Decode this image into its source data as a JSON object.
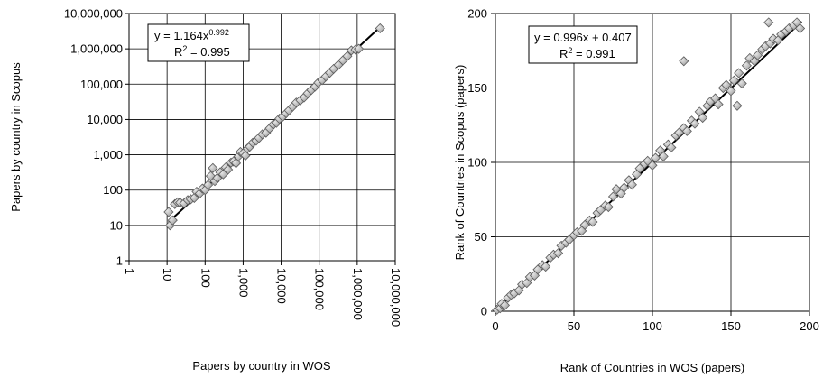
{
  "chart_data": [
    {
      "type": "scatter",
      "xscale": "log",
      "yscale": "log",
      "xlim": [
        1,
        10000000
      ],
      "ylim": [
        1,
        10000000
      ],
      "xlabel": "Papers by country in WOS",
      "ylabel": "Papers by country in Scopus",
      "xticks": [
        "1",
        "10",
        "100",
        "1,000",
        "10,000",
        "100,000",
        "1,000,000",
        "10,000,000"
      ],
      "yticks": [
        "1",
        "10",
        "100",
        "1,000",
        "10,000",
        "100,000",
        "1,000,000",
        "10,000,000"
      ],
      "grid": true,
      "annotation": {
        "line1": "y = 1.164x",
        "exp": "0.992",
        "r2_prefix": "R",
        "r2_sup": "2",
        "r2_value": " = 0.995"
      },
      "trendline": {
        "a": 1.164,
        "b": 0.992,
        "x_range": [
          11,
          4000000
        ]
      },
      "points": [
        [
          11,
          24
        ],
        [
          12,
          10
        ],
        [
          14,
          14
        ],
        [
          16,
          40
        ],
        [
          19,
          45
        ],
        [
          22,
          44
        ],
        [
          28,
          42
        ],
        [
          35,
          52
        ],
        [
          42,
          55
        ],
        [
          52,
          60
        ],
        [
          60,
          90
        ],
        [
          72,
          80
        ],
        [
          85,
          110
        ],
        [
          100,
          100
        ],
        [
          120,
          140
        ],
        [
          140,
          250
        ],
        [
          160,
          420
        ],
        [
          180,
          180
        ],
        [
          210,
          220
        ],
        [
          250,
          320
        ],
        [
          300,
          280
        ],
        [
          350,
          440
        ],
        [
          400,
          380
        ],
        [
          480,
          600
        ],
        [
          560,
          650
        ],
        [
          650,
          580
        ],
        [
          750,
          900
        ],
        [
          850,
          1200
        ],
        [
          1000,
          1100
        ],
        [
          1150,
          950
        ],
        [
          1300,
          1500
        ],
        [
          1500,
          1700
        ],
        [
          1800,
          2200
        ],
        [
          2200,
          2500
        ],
        [
          2600,
          3000
        ],
        [
          3200,
          3800
        ],
        [
          4000,
          4200
        ],
        [
          5000,
          5600
        ],
        [
          6200,
          7200
        ],
        [
          7500,
          8000
        ],
        [
          9000,
          10500
        ],
        [
          11000,
          12000
        ],
        [
          13500,
          15000
        ],
        [
          16000,
          18000
        ],
        [
          20000,
          23000
        ],
        [
          25000,
          30000
        ],
        [
          32000,
          35000
        ],
        [
          40000,
          42000
        ],
        [
          50000,
          55000
        ],
        [
          62000,
          68000
        ],
        [
          78000,
          85000
        ],
        [
          95000,
          110000
        ],
        [
          120000,
          130000
        ],
        [
          150000,
          165000
        ],
        [
          190000,
          210000
        ],
        [
          240000,
          270000
        ],
        [
          320000,
          350000
        ],
        [
          420000,
          470000
        ],
        [
          550000,
          620000
        ],
        [
          700000,
          900000
        ],
        [
          900000,
          950000
        ],
        [
          1100000,
          1000000
        ],
        [
          4000000,
          3800000
        ]
      ]
    },
    {
      "type": "scatter",
      "xlim": [
        0,
        200
      ],
      "ylim": [
        0,
        200
      ],
      "xlabel": "Rank of Countries in WOS (papers)",
      "ylabel": "Rank of Countries in Scopus (papers)",
      "xticks": [
        "0",
        "50",
        "100",
        "150",
        "200"
      ],
      "yticks": [
        "0",
        "50",
        "100",
        "150",
        "200"
      ],
      "grid": true,
      "annotation": {
        "line1": "y = 0.996x + 0.407",
        "r2_prefix": "R",
        "r2_sup": "2",
        "r2_value": " = 0.991"
      },
      "trendline": {
        "a": 0.996,
        "b": 0.407,
        "x_range": [
          0,
          195
        ]
      },
      "points": [
        [
          1,
          1
        ],
        [
          3,
          2
        ],
        [
          4,
          5
        ],
        [
          6,
          4
        ],
        [
          8,
          9
        ],
        [
          10,
          11
        ],
        [
          12,
          12
        ],
        [
          15,
          14
        ],
        [
          17,
          18
        ],
        [
          20,
          19
        ],
        [
          22,
          23
        ],
        [
          25,
          24
        ],
        [
          27,
          28
        ],
        [
          30,
          31
        ],
        [
          32,
          30
        ],
        [
          35,
          36
        ],
        [
          37,
          38
        ],
        [
          40,
          39
        ],
        [
          42,
          44
        ],
        [
          45,
          46
        ],
        [
          47,
          48
        ],
        [
          50,
          51
        ],
        [
          52,
          53
        ],
        [
          55,
          54
        ],
        [
          57,
          58
        ],
        [
          60,
          61
        ],
        [
          62,
          60
        ],
        [
          65,
          66
        ],
        [
          67,
          68
        ],
        [
          70,
          71
        ],
        [
          72,
          70
        ],
        [
          75,
          77
        ],
        [
          77,
          82
        ],
        [
          80,
          79
        ],
        [
          82,
          83
        ],
        [
          85,
          88
        ],
        [
          87,
          85
        ],
        [
          90,
          92
        ],
        [
          92,
          96
        ],
        [
          95,
          99
        ],
        [
          97,
          101
        ],
        [
          100,
          98
        ],
        [
          102,
          103
        ],
        [
          105,
          108
        ],
        [
          107,
          104
        ],
        [
          110,
          112
        ],
        [
          112,
          110
        ],
        [
          115,
          118
        ],
        [
          117,
          120
        ],
        [
          120,
          168
        ],
        [
          120,
          123
        ],
        [
          122,
          121
        ],
        [
          125,
          128
        ],
        [
          127,
          126
        ],
        [
          130,
          134
        ],
        [
          132,
          130
        ],
        [
          135,
          138
        ],
        [
          137,
          141
        ],
        [
          140,
          143
        ],
        [
          142,
          139
        ],
        [
          145,
          150
        ],
        [
          147,
          152
        ],
        [
          150,
          148
        ],
        [
          152,
          155
        ],
        [
          154,
          138
        ],
        [
          155,
          160
        ],
        [
          157,
          153
        ],
        [
          160,
          165
        ],
        [
          162,
          170
        ],
        [
          165,
          168
        ],
        [
          167,
          172
        ],
        [
          170,
          176
        ],
        [
          172,
          178
        ],
        [
          174,
          194
        ],
        [
          175,
          180
        ],
        [
          177,
          183
        ],
        [
          180,
          182
        ],
        [
          182,
          186
        ],
        [
          185,
          188
        ],
        [
          187,
          190
        ],
        [
          190,
          192
        ],
        [
          192,
          194
        ],
        [
          194,
          190
        ]
      ]
    }
  ]
}
